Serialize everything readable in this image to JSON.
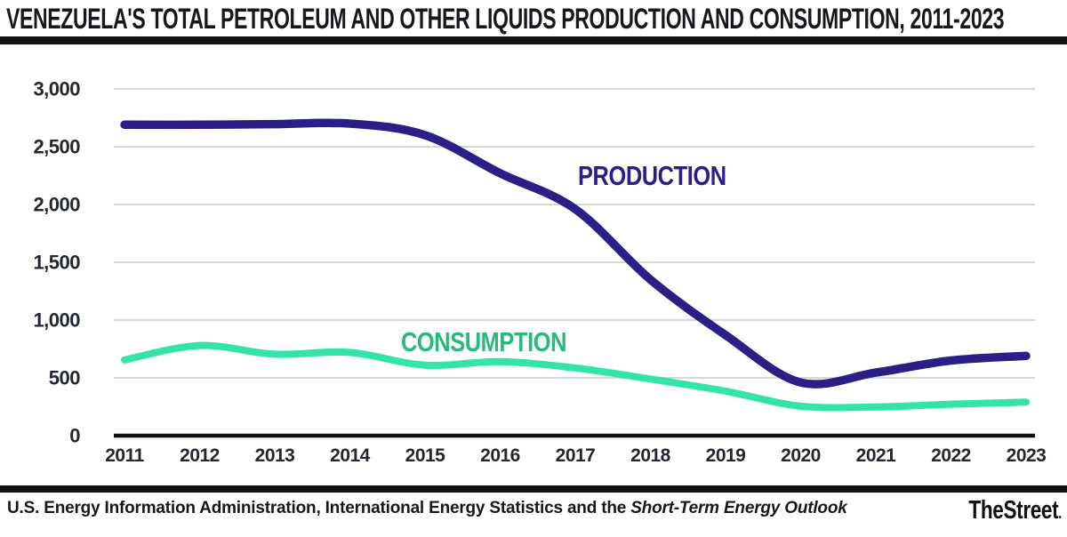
{
  "header": {
    "title": "VENEZUELA'S TOTAL PETROLEUM AND OTHER LIQUIDS PRODUCTION AND CONSUMPTION, 2011-2023"
  },
  "footer": {
    "source_text": "U.S. Energy Information Administration, International Energy Statistics and the ",
    "source_italic": "Short-Term Energy Outlook",
    "logo_text": "TheStreet",
    "logo_suffix": "."
  },
  "chart_data": {
    "type": "line",
    "title": "Venezuela's total petroleum and other liquids production and consumption, 2011-2023",
    "x": [
      2011,
      2012,
      2013,
      2014,
      2015,
      2016,
      2017,
      2018,
      2019,
      2020,
      2021,
      2022,
      2023
    ],
    "series": [
      {
        "name": "PRODUCTION",
        "color": "#2b1e86",
        "label_color": "#2b1e86",
        "values": [
          2690,
          2690,
          2695,
          2700,
          2600,
          2270,
          1960,
          1350,
          870,
          460,
          545,
          650,
          690
        ]
      },
      {
        "name": "CONSUMPTION",
        "color": "#33e3aa",
        "label_color": "#28b97b",
        "values": [
          655,
          780,
          705,
          720,
          610,
          640,
          585,
          490,
          385,
          255,
          248,
          272,
          290
        ]
      }
    ],
    "ylim": [
      0,
      3000
    ],
    "yticks": [
      0,
      500,
      1000,
      1500,
      2000,
      2500,
      3000
    ],
    "ytick_labels": [
      "0",
      "500",
      "1,000",
      "1,500",
      "2,000",
      "2,500",
      "3,000"
    ],
    "grid": true,
    "legend_position": "inline-labels",
    "colors": {
      "gridline": "#d7d7d7",
      "axis_line": "#111111",
      "tick_text": "#23272f"
    }
  }
}
